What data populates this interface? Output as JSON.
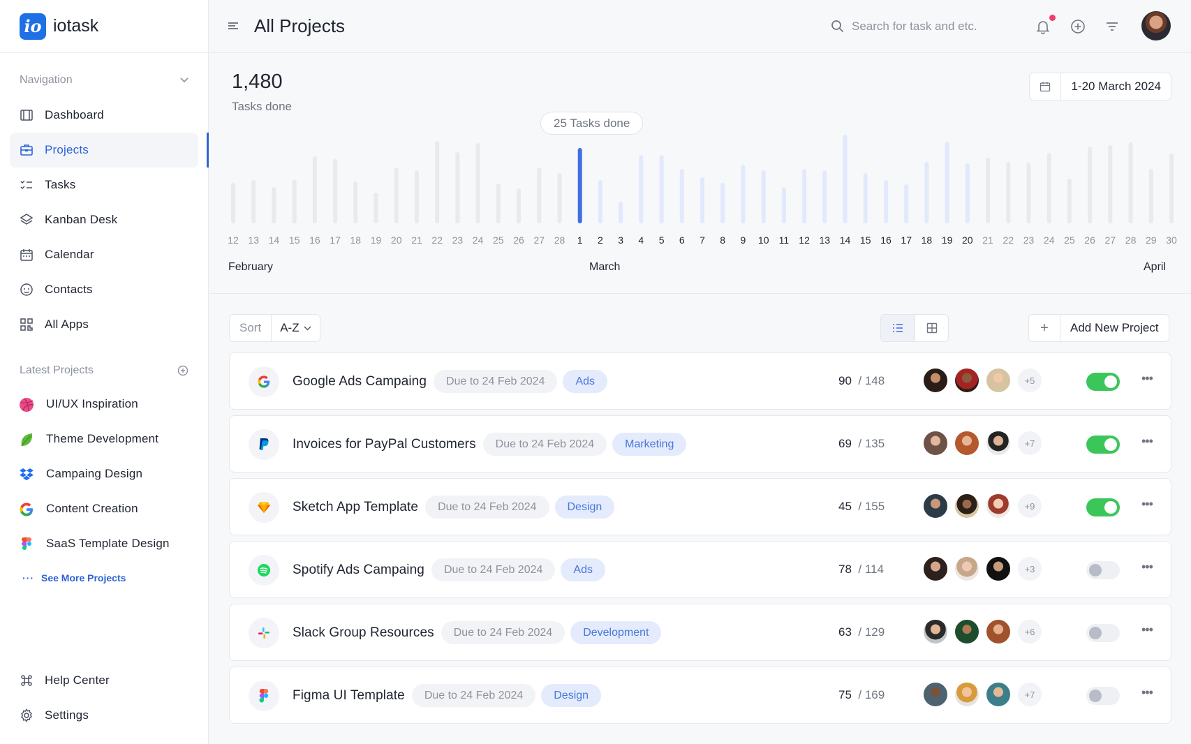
{
  "brand": {
    "name": "iotask",
    "logo_text": "io"
  },
  "sidebar": {
    "nav_heading": "Navigation",
    "items": [
      {
        "label": "Dashboard",
        "icon": "dashboard-icon"
      },
      {
        "label": "Projects",
        "icon": "briefcase-icon",
        "active": true
      },
      {
        "label": "Tasks",
        "icon": "checklist-icon"
      },
      {
        "label": "Kanban Desk",
        "icon": "layers-icon"
      },
      {
        "label": "Calendar",
        "icon": "calendar-icon"
      },
      {
        "label": "Contacts",
        "icon": "contacts-icon"
      },
      {
        "label": "All Apps",
        "icon": "apps-grid-icon"
      }
    ],
    "latest_heading": "Latest Projects",
    "projects": [
      {
        "label": "UI/UX Inspiration",
        "icon": "dribbble-icon"
      },
      {
        "label": "Theme Development",
        "icon": "leaf-icon"
      },
      {
        "label": "Campaing Design",
        "icon": "dropbox-icon"
      },
      {
        "label": "Content Creation",
        "icon": "google-icon"
      },
      {
        "label": "SaaS Template Design",
        "icon": "figma-icon"
      }
    ],
    "see_more": "See More Projects",
    "bottom": [
      {
        "label": "Help Center",
        "icon": "command-icon"
      },
      {
        "label": "Settings",
        "icon": "gear-icon"
      }
    ]
  },
  "header": {
    "title": "All Projects",
    "search_placeholder": "Search for task and etc."
  },
  "stats": {
    "value": "1,480",
    "label": "Tasks done",
    "date_range": "1-20 March 2024",
    "tooltip": "25 Tasks done"
  },
  "chart_data": {
    "type": "bar",
    "categories": [
      "12",
      "13",
      "14",
      "15",
      "16",
      "17",
      "18",
      "19",
      "20",
      "21",
      "22",
      "23",
      "24",
      "25",
      "26",
      "27",
      "28",
      "1",
      "2",
      "3",
      "4",
      "5",
      "6",
      "7",
      "8",
      "9",
      "10",
      "11",
      "12",
      "13",
      "14",
      "15",
      "16",
      "17",
      "18",
      "19",
      "20",
      "21",
      "22",
      "23",
      "24",
      "25",
      "26",
      "27",
      "28",
      "29",
      "30"
    ],
    "values": [
      58,
      62,
      52,
      62,
      96,
      92,
      60,
      44,
      80,
      76,
      118,
      102,
      115,
      57,
      50,
      80,
      72,
      108,
      62,
      31,
      98,
      98,
      78,
      66,
      58,
      84,
      76,
      52,
      78,
      76,
      127,
      72,
      62,
      56,
      88,
      117,
      86,
      94,
      88,
      87,
      101,
      64,
      110,
      112,
      116,
      78,
      100
    ],
    "highlight_index": 17,
    "highlight_color": "#3f6fe3",
    "future_range": [
      18,
      36
    ],
    "future_color": "#e3e9fd",
    "past_color": "#e9eaed",
    "months": [
      "February",
      "March",
      "April"
    ]
  },
  "toolbar": {
    "sort_label": "Sort",
    "sort_value": "A-Z",
    "add_label": "Add New Project"
  },
  "projects": [
    {
      "title": "Google Ads Campaing",
      "icon": "google-icon",
      "due": "Due to 24 Feb 2024",
      "tag": "Ads",
      "done": "90",
      "total": "/ 148",
      "more": "+5",
      "enabled": true
    },
    {
      "title": "Invoices for PayPal Customers",
      "icon": "paypal-icon",
      "due": "Due to 24 Feb 2024",
      "tag": "Marketing",
      "done": "69",
      "total": "/ 135",
      "more": "+7",
      "enabled": true
    },
    {
      "title": "Sketch App Template",
      "icon": "sketch-icon",
      "due": "Due to 24 Feb 2024",
      "tag": "Design",
      "done": "45",
      "total": "/ 155",
      "more": "+9",
      "enabled": true
    },
    {
      "title": "Spotify Ads Campaing",
      "icon": "spotify-icon",
      "due": "Due to 24 Feb 2024",
      "tag": "Ads",
      "done": "78",
      "total": "/ 114",
      "more": "+3",
      "enabled": false
    },
    {
      "title": "Slack Group Resources",
      "icon": "slack-icon",
      "due": "Due to 24 Feb 2024",
      "tag": "Development",
      "done": "63",
      "total": "/ 129",
      "more": "+6",
      "enabled": false
    },
    {
      "title": "Figma UI Template",
      "icon": "figma-icon",
      "due": "Due to 24 Feb 2024",
      "tag": "Design",
      "done": "75",
      "total": "/ 169",
      "more": "+7",
      "enabled": false
    }
  ]
}
